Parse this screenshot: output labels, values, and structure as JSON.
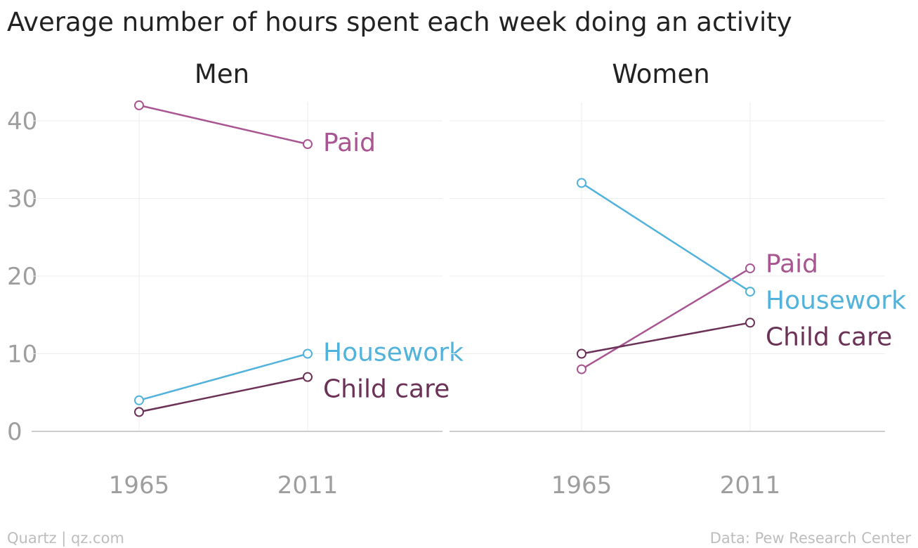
{
  "title": "Average number of hours spent each week doing an activity",
  "footer": {
    "source_left": "Quartz | qz.com",
    "source_right": "Data: Pew Research Center"
  },
  "colors": {
    "paid": "#a95592",
    "housework": "#51b2db",
    "child_care": "#6b3157",
    "axis": "#bdbdbd",
    "tick_text": "#9e9e9e",
    "grid": "#eeeeee",
    "text": "#222222"
  },
  "chart_data": [
    {
      "type": "line",
      "title": "Men",
      "x": [
        "1965",
        "2011"
      ],
      "ylim": [
        0,
        40
      ],
      "yticks": [
        0,
        10,
        20,
        30,
        40
      ],
      "grid": true,
      "series": [
        {
          "name": "Paid",
          "key": "paid",
          "values": [
            42,
            37
          ]
        },
        {
          "name": "Housework",
          "key": "housework",
          "values": [
            4,
            10
          ]
        },
        {
          "name": "Child care",
          "key": "child_care",
          "values": [
            2.5,
            7
          ]
        }
      ]
    },
    {
      "type": "line",
      "title": "Women",
      "x": [
        "1965",
        "2011"
      ],
      "ylim": [
        0,
        40
      ],
      "yticks": [
        0,
        10,
        20,
        30,
        40
      ],
      "grid": true,
      "series": [
        {
          "name": "Paid",
          "key": "paid",
          "values": [
            8,
            21
          ]
        },
        {
          "name": "Housework",
          "key": "housework",
          "values": [
            32,
            18
          ]
        },
        {
          "name": "Child care",
          "key": "child_care",
          "values": [
            10,
            14
          ]
        }
      ]
    }
  ]
}
